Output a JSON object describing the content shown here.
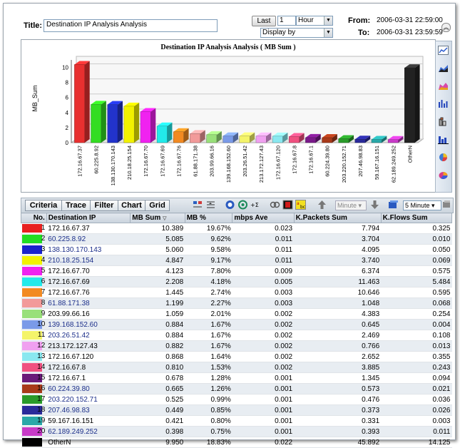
{
  "header": {
    "title_label": "Title:",
    "title_value": "Destination IP Analysis Analysis",
    "last_button": "Last",
    "last_count": "1",
    "unit_select": "Hour",
    "display_select": "Display by",
    "from_label": "From:",
    "to_label": "To:",
    "from_value": "2006-03-31 22:59:00",
    "to_value": "2006-03-31 23:59:59"
  },
  "chart_data": {
    "type": "bar",
    "title": "Destination IP Analysis Analysis ( MB Sum )",
    "ylabel": "MB_Sum",
    "xlabel": "",
    "ylim": [
      0,
      11
    ],
    "yticks": [
      0,
      2,
      4,
      6,
      8,
      10
    ],
    "categories": [
      "172.16.67.37",
      "60.225.8.92",
      "138.130.170.143",
      "210.18.25.154",
      "172.16.67.70",
      "172.16.67.69",
      "172.16.67.76",
      "61.88.171.38",
      "203.99.66.16",
      "139.168.152.60",
      "203.26.51.42",
      "213.172.127.43",
      "172.16.67.120",
      "172.16.67.8",
      "172.16.67.1",
      "60.224.39.80",
      "203.220.152.71",
      "207.46.98.83",
      "59.167.16.151",
      "62.189.249.252",
      "OtherN"
    ],
    "values": [
      10.389,
      5.085,
      5.06,
      4.847,
      4.123,
      2.208,
      1.445,
      1.199,
      1.059,
      0.884,
      0.884,
      0.882,
      0.868,
      0.81,
      0.678,
      0.665,
      0.525,
      0.449,
      0.421,
      0.398,
      9.95
    ],
    "colors": [
      "#e83030",
      "#33dd22",
      "#2233cc",
      "#f2f200",
      "#f022f0",
      "#22eaea",
      "#f28a22",
      "#f29a9a",
      "#99e07a",
      "#7a9ae8",
      "#f4f46a",
      "#f0a0f0",
      "#8ae8f0",
      "#f05080",
      "#7a1a8a",
      "#a83a1a",
      "#2a9a2a",
      "#2a2a9a",
      "#2aa8a8",
      "#c83ac8",
      "#222222"
    ]
  },
  "tabs": {
    "criteria": "Criteria",
    "trace": "Trace",
    "filter": "Filter",
    "chart": "Chart",
    "grid": "Grid"
  },
  "toolbar": {
    "minute_select": "Minute",
    "interval_select": "5 Minute"
  },
  "table": {
    "columns": {
      "no": "No.",
      "ip": "Destination IP",
      "mb_sum": "MB Sum",
      "mb_pct": "MB %",
      "mbps": "mbps Ave",
      "kpackets": "K.Packets Sum",
      "kflows": "K.Flows Sum"
    },
    "rows": [
      {
        "no": "1",
        "ip": "172.16.67.37",
        "mb_sum": "10.389",
        "mb_pct": "19.67%",
        "mbps": "0.023",
        "kpackets": "7.794",
        "kflows": "0.325",
        "color": "#e82020",
        "link": false
      },
      {
        "no": "2",
        "ip": "60.225.8.92",
        "mb_sum": "5.085",
        "mb_pct": "9.62%",
        "mbps": "0.011",
        "kpackets": "3.704",
        "kflows": "0.010",
        "color": "#22dd22",
        "link": true
      },
      {
        "no": "3",
        "ip": "138.130.170.143",
        "mb_sum": "5.060",
        "mb_pct": "9.58%",
        "mbps": "0.011",
        "kpackets": "4.095",
        "kflows": "0.050",
        "color": "#1a22cc",
        "link": true
      },
      {
        "no": "4",
        "ip": "210.18.25.154",
        "mb_sum": "4.847",
        "mb_pct": "9.17%",
        "mbps": "0.011",
        "kpackets": "3.740",
        "kflows": "0.069",
        "color": "#f2f200",
        "link": true
      },
      {
        "no": "5",
        "ip": "172.16.67.70",
        "mb_sum": "4.123",
        "mb_pct": "7.80%",
        "mbps": "0.009",
        "kpackets": "6.374",
        "kflows": "0.575",
        "color": "#f022f0",
        "link": false
      },
      {
        "no": "6",
        "ip": "172.16.67.69",
        "mb_sum": "2.208",
        "mb_pct": "4.18%",
        "mbps": "0.005",
        "kpackets": "11.463",
        "kflows": "5.484",
        "color": "#22eaea",
        "link": false
      },
      {
        "no": "7",
        "ip": "172.16.67.76",
        "mb_sum": "1.445",
        "mb_pct": "2.74%",
        "mbps": "0.003",
        "kpackets": "10.646",
        "kflows": "0.595",
        "color": "#f28a22",
        "link": false
      },
      {
        "no": "8",
        "ip": "61.88.171.38",
        "mb_sum": "1.199",
        "mb_pct": "2.27%",
        "mbps": "0.003",
        "kpackets": "1.048",
        "kflows": "0.068",
        "color": "#f29a9a",
        "link": true
      },
      {
        "no": "9",
        "ip": "203.99.66.16",
        "mb_sum": "1.059",
        "mb_pct": "2.01%",
        "mbps": "0.002",
        "kpackets": "4.383",
        "kflows": "0.254",
        "color": "#99e07a",
        "link": false
      },
      {
        "no": "10",
        "ip": "139.168.152.60",
        "mb_sum": "0.884",
        "mb_pct": "1.67%",
        "mbps": "0.002",
        "kpackets": "0.645",
        "kflows": "0.004",
        "color": "#7a9ae8",
        "link": true
      },
      {
        "no": "11",
        "ip": "203.26.51.42",
        "mb_sum": "0.884",
        "mb_pct": "1.67%",
        "mbps": "0.002",
        "kpackets": "2.469",
        "kflows": "0.108",
        "color": "#f4f46a",
        "link": true
      },
      {
        "no": "12",
        "ip": "213.172.127.43",
        "mb_sum": "0.882",
        "mb_pct": "1.67%",
        "mbps": "0.002",
        "kpackets": "0.766",
        "kflows": "0.013",
        "color": "#f0a0f0",
        "link": false
      },
      {
        "no": "13",
        "ip": "172.16.67.120",
        "mb_sum": "0.868",
        "mb_pct": "1.64%",
        "mbps": "0.002",
        "kpackets": "2.652",
        "kflows": "0.355",
        "color": "#8ae8f0",
        "link": false
      },
      {
        "no": "14",
        "ip": "172.16.67.8",
        "mb_sum": "0.810",
        "mb_pct": "1.53%",
        "mbps": "0.002",
        "kpackets": "3.885",
        "kflows": "0.243",
        "color": "#f05080",
        "link": false
      },
      {
        "no": "15",
        "ip": "172.16.67.1",
        "mb_sum": "0.678",
        "mb_pct": "1.28%",
        "mbps": "0.001",
        "kpackets": "1.345",
        "kflows": "0.094",
        "color": "#6a1a7a",
        "link": false
      },
      {
        "no": "16",
        "ip": "60.224.39.80",
        "mb_sum": "0.665",
        "mb_pct": "1.26%",
        "mbps": "0.001",
        "kpackets": "0.573",
        "kflows": "0.021",
        "color": "#a83a1a",
        "link": true
      },
      {
        "no": "17",
        "ip": "203.220.152.71",
        "mb_sum": "0.525",
        "mb_pct": "0.99%",
        "mbps": "0.001",
        "kpackets": "0.476",
        "kflows": "0.036",
        "color": "#2a9a2a",
        "link": true
      },
      {
        "no": "18",
        "ip": "207.46.98.83",
        "mb_sum": "0.449",
        "mb_pct": "0.85%",
        "mbps": "0.001",
        "kpackets": "0.373",
        "kflows": "0.026",
        "color": "#2a2a9a",
        "link": true
      },
      {
        "no": "19",
        "ip": "59.167.16.151",
        "mb_sum": "0.421",
        "mb_pct": "0.80%",
        "mbps": "0.001",
        "kpackets": "0.331",
        "kflows": "0.003",
        "color": "#2aa8a8",
        "link": false
      },
      {
        "no": "20",
        "ip": "62.189.249.252",
        "mb_sum": "0.398",
        "mb_pct": "0.75%",
        "mbps": "0.001",
        "kpackets": "0.393",
        "kflows": "0.011",
        "color": "#c83ac8",
        "link": true
      },
      {
        "no": "",
        "ip": "OtherN",
        "mb_sum": "9.950",
        "mb_pct": "18.83%",
        "mbps": "0.022",
        "kpackets": "45.892",
        "kflows": "14.125",
        "color": "#000000",
        "link": false
      }
    ]
  }
}
